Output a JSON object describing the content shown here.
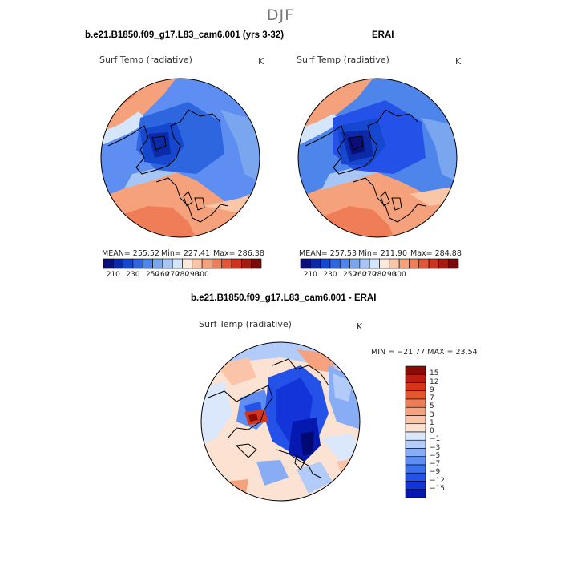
{
  "season": "DJF",
  "colors": {
    "abs_scale": [
      "#0a0f7a",
      "#0c2aa8",
      "#1547cf",
      "#2e66e0",
      "#4d85ea",
      "#7aa6f0",
      "#a8c6f5",
      "#d5e5fa",
      "#fbe9dc",
      "#fac6a8",
      "#f5a27c",
      "#ee7d58",
      "#e25637",
      "#cc3320",
      "#a51b12",
      "#7a0909"
    ],
    "diff_scale": [
      "#000a72",
      "#0518b0",
      "#1234d8",
      "#2452e8",
      "#3d70ee",
      "#5f8ef2",
      "#88adf5",
      "#b3cbf8",
      "#dbe7fb",
      "#ffffff",
      "#fde2d2",
      "#fbc4a8",
      "#f7a27e",
      "#f07d56",
      "#e3572f",
      "#d5361a",
      "#b91e10",
      "#8c0c05"
    ]
  },
  "chart_data": [
    {
      "type": "heatmap",
      "title": "b.e21.B1850.f09_g17.L83_cam6.001 (yrs 3-32)",
      "variable": "Surf Temp (radiative)",
      "units": "K",
      "projection": "north polar stereographic",
      "stats": {
        "mean": "255.52",
        "min": "227.41",
        "max": "286.38"
      },
      "stats_text": {
        "mean": "MEAN= 255.52",
        "min": "Min= 227.41",
        "max": "Max= 286.38"
      },
      "colorbar_ticks": [
        "210",
        "230",
        "250",
        "260",
        "270",
        "280",
        "290",
        "300"
      ]
    },
    {
      "type": "heatmap",
      "title": "ERAI",
      "variable": "Surf Temp (radiative)",
      "units": "K",
      "projection": "north polar stereographic",
      "stats": {
        "mean": "257.53",
        "min": "211.90",
        "max": "284.88"
      },
      "stats_text": {
        "mean": "MEAN= 257.53",
        "min": "Min= 211.90",
        "max": "Max= 284.88"
      },
      "colorbar_ticks": [
        "210",
        "230",
        "250",
        "260",
        "270",
        "280",
        "290",
        "300"
      ]
    },
    {
      "type": "heatmap",
      "title": "b.e21.B1850.f09_g17.L83_cam6.001 - ERAI",
      "variable": "Surf Temp (radiative)",
      "units": "K",
      "projection": "north polar stereographic",
      "stats": {
        "min": "-21.77",
        "max": "23.54"
      },
      "stats_text": "MIN = −21.77  MAX =  23.54",
      "colorbar_ticks": [
        "15",
        "12",
        "9",
        "7",
        "5",
        "3",
        "1",
        "0",
        "−1",
        "−3",
        "−5",
        "−7",
        "−9",
        "−12",
        "−15"
      ]
    }
  ]
}
